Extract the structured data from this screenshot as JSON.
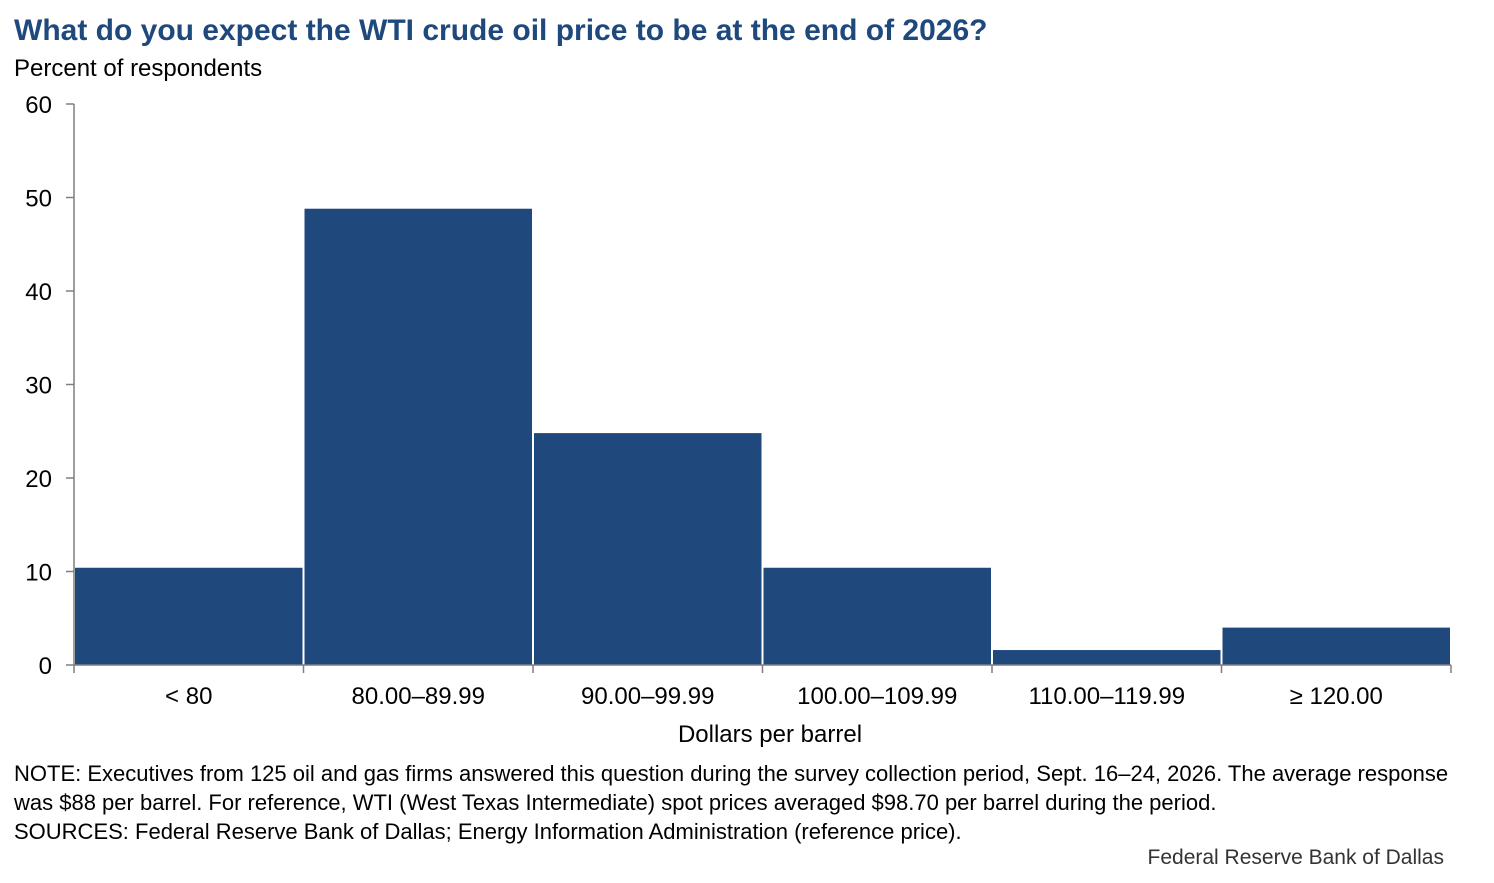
{
  "chart_data": {
    "type": "bar",
    "title": "What do you expect the WTI crude oil price to be at the end of 2026?",
    "subtitle": "Percent of respondents",
    "xlabel": "Dollars per barrel",
    "ylabel": "",
    "categories": [
      "< 80",
      "80.00–89.99",
      "90.00–99.99",
      "100.00–109.99",
      "110.00–119.99",
      "≥ 120.00"
    ],
    "values": [
      10.4,
      48.8,
      24.8,
      10.4,
      1.6,
      4.0
    ],
    "ylim": [
      0,
      60
    ],
    "yticks": [
      0,
      10,
      20,
      30,
      40,
      50,
      60
    ],
    "bar_color": "#1f497d",
    "grid": false,
    "legend": "none"
  },
  "footer": {
    "note": "NOTE: Executives from 125 oil and gas firms answered this question during the survey collection period, Sept. 16–24, 2026. The average response was $88 per barrel. For reference, WTI (West Texas Intermediate) spot prices averaged $98.70 per barrel during the period.",
    "sources": "SOURCES: Federal Reserve Bank of Dallas; Energy Information Administration (reference price).",
    "watermark": "Federal Reserve Bank of Dallas"
  }
}
